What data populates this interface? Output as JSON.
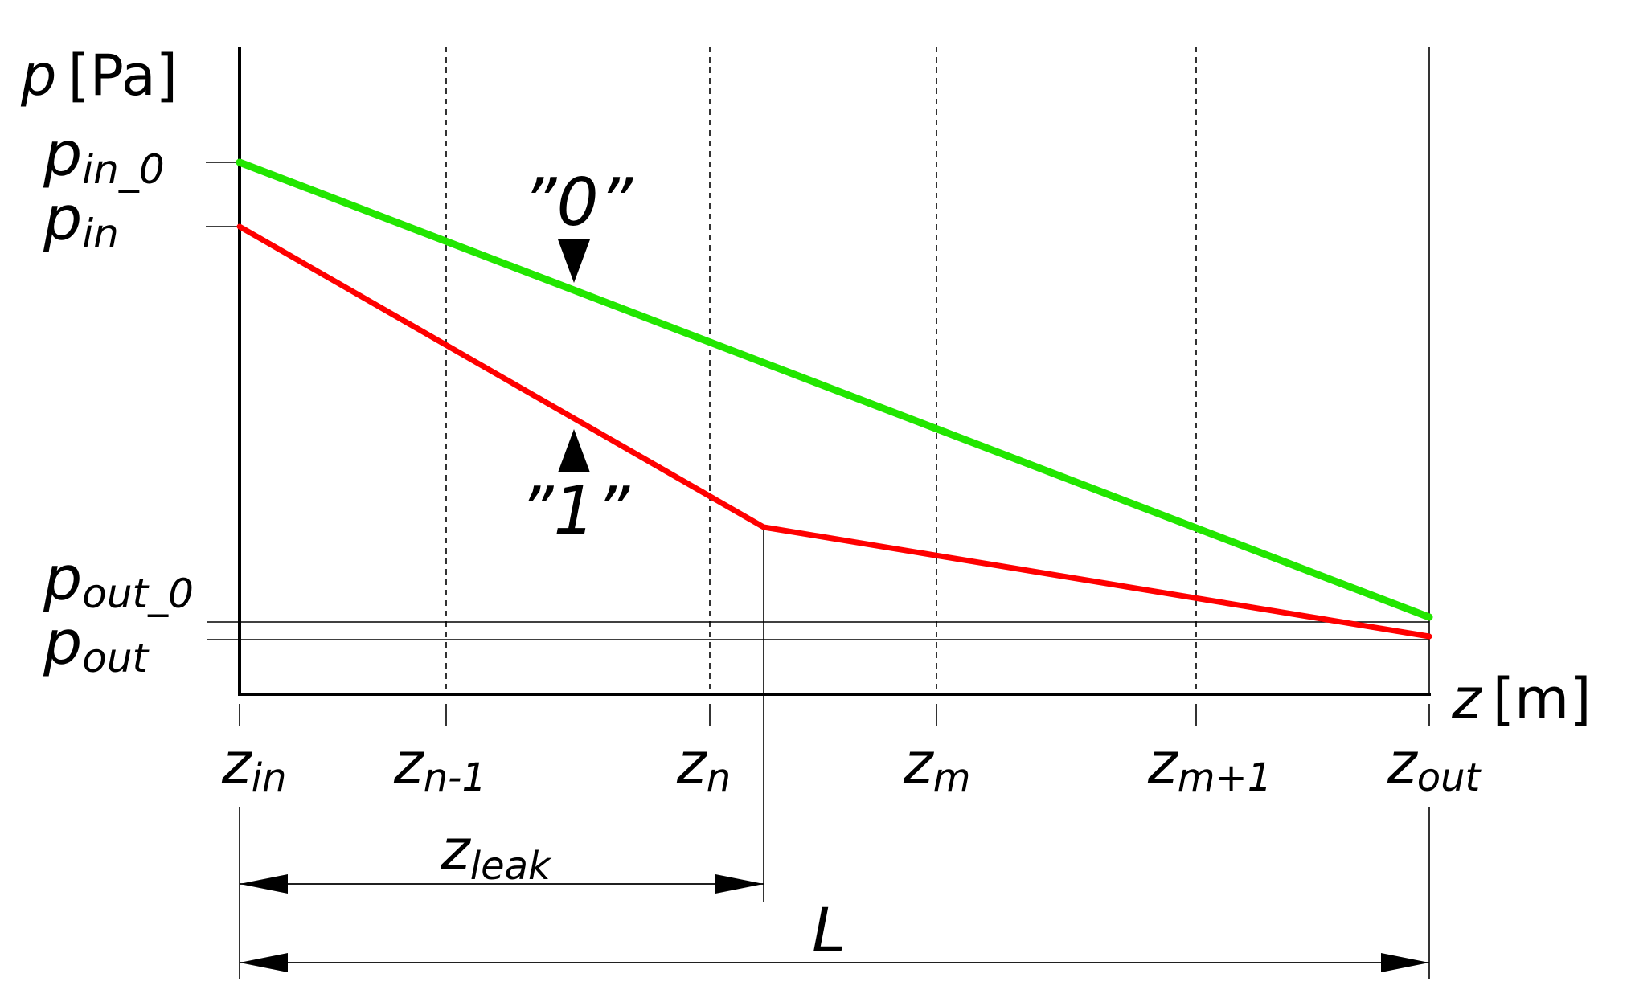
{
  "y_axis": {
    "symbol": "p",
    "unit": "[Pa]"
  },
  "x_axis": {
    "symbol": "z",
    "unit": "[m]"
  },
  "pressure_labels": [
    {
      "base": "p",
      "sub": "in_0"
    },
    {
      "base": "p",
      "sub": "in"
    },
    {
      "base": "p",
      "sub": "out_0"
    },
    {
      "base": "p",
      "sub": "out"
    }
  ],
  "z_labels": [
    {
      "base": "z",
      "sub": "in"
    },
    {
      "base": "z",
      "sub": "n-1"
    },
    {
      "base": "z",
      "sub": "n"
    },
    {
      "base": "z",
      "sub": "m"
    },
    {
      "base": "z",
      "sub": "m+1"
    },
    {
      "base": "z",
      "sub": "out"
    }
  ],
  "curves": [
    {
      "label": "”0”",
      "color": "#22e600"
    },
    {
      "label": "”1”",
      "color": "#ff0000"
    }
  ],
  "dimensions": {
    "leak": {
      "base": "z",
      "sub": "leak"
    },
    "length": "L"
  }
}
